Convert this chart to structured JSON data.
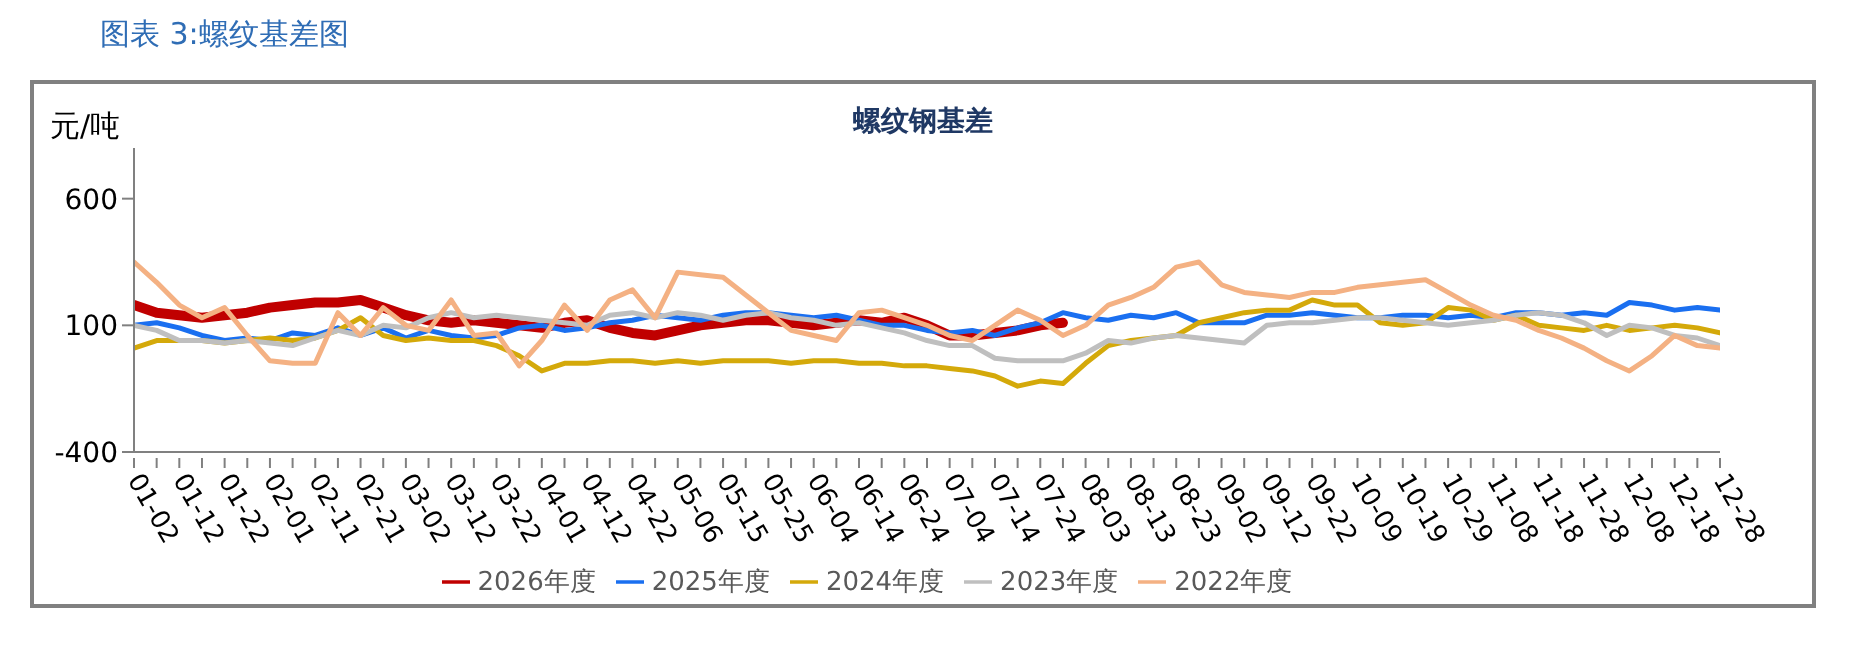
{
  "chart_data": {
    "type": "line",
    "title": "螺纹钢基差",
    "subtitle": "图表 3:螺纹基差图",
    "ylabel": "元/吨",
    "categories": [
      "01-02",
      null,
      "01-12",
      null,
      "01-22",
      null,
      "02-01",
      null,
      "02-11",
      null,
      "02-21",
      null,
      "03-02",
      null,
      "03-12",
      null,
      "03-22",
      null,
      "04-01",
      null,
      "04-12",
      null,
      "04-22",
      null,
      "05-06",
      null,
      "05-15",
      null,
      "05-25",
      null,
      "06-04",
      null,
      "06-14",
      null,
      "06-24",
      null,
      "07-04",
      null,
      "07-14",
      null,
      "07-24",
      null,
      "08-03",
      null,
      "08-13",
      null,
      "08-23",
      null,
      "09-02",
      null,
      "09-12",
      null,
      "09-22",
      null,
      "10-09",
      null,
      "10-19",
      null,
      "10-29",
      null,
      "11-08",
      null,
      "11-18",
      null,
      "11-28",
      null,
      "12-08",
      null,
      "12-18",
      null,
      "12-28"
    ],
    "ylim": [
      -400,
      800
    ],
    "yticks": [
      -400,
      100,
      600
    ],
    "grid": false,
    "legend": "bottom",
    "marker": "none",
    "series": [
      {
        "name": "2026年度",
        "color": "#c00000",
        "values": [
          180,
          150,
          140,
          130,
          140,
          150,
          170,
          180,
          190,
          190,
          200,
          170,
          140,
          120,
          110,
          120,
          110,
          100,
          90,
          110,
          120,
          90,
          70,
          60,
          80,
          100,
          110,
          120,
          120,
          110,
          100,
          110,
          120,
          110,
          130,
          100,
          60,
          60,
          70,
          80,
          100,
          110,
          null,
          null,
          null,
          null,
          null,
          null,
          null,
          null,
          null,
          null,
          null,
          null,
          null,
          null,
          null,
          null,
          null,
          null,
          null,
          null,
          null,
          null,
          null,
          null,
          null,
          null,
          null,
          null,
          null
        ]
      },
      {
        "name": "2025年度",
        "color": "#1a6ff0",
        "values": [
          100,
          110,
          90,
          60,
          40,
          50,
          40,
          70,
          60,
          90,
          60,
          90,
          50,
          80,
          60,
          50,
          60,
          90,
          100,
          80,
          90,
          110,
          120,
          140,
          130,
          120,
          140,
          150,
          150,
          140,
          130,
          140,
          120,
          100,
          100,
          80,
          70,
          80,
          60,
          90,
          110,
          150,
          130,
          120,
          140,
          130,
          150,
          110,
          110,
          110,
          140,
          140,
          150,
          140,
          130,
          130,
          140,
          140,
          130,
          140,
          130,
          150,
          150,
          140,
          150,
          140,
          190,
          180,
          160,
          170,
          160
        ]
      },
      {
        "name": "2024年度",
        "color": "#d4a90a",
        "values": [
          10,
          40,
          40,
          40,
          30,
          40,
          50,
          40,
          50,
          80,
          130,
          60,
          40,
          50,
          40,
          40,
          20,
          -20,
          -80,
          -50,
          -50,
          -40,
          -40,
          -50,
          -40,
          -50,
          -40,
          -40,
          -40,
          -50,
          -40,
          -40,
          -50,
          -50,
          -60,
          -60,
          -70,
          -80,
          -100,
          -140,
          -120,
          -130,
          -50,
          20,
          40,
          50,
          60,
          110,
          130,
          150,
          160,
          160,
          200,
          180,
          180,
          110,
          100,
          110,
          170,
          160,
          120,
          140,
          100,
          90,
          80,
          100,
          80,
          90,
          100,
          90,
          70
        ]
      },
      {
        "name": "2023年度",
        "color": "#bfbfbf",
        "values": [
          100,
          80,
          40,
          40,
          30,
          40,
          30,
          20,
          50,
          80,
          60,
          100,
          90,
          130,
          150,
          130,
          140,
          130,
          120,
          110,
          100,
          140,
          150,
          130,
          150,
          140,
          120,
          140,
          150,
          130,
          120,
          100,
          110,
          90,
          70,
          40,
          20,
          20,
          -30,
          -40,
          -40,
          -40,
          -10,
          40,
          30,
          50,
          60,
          50,
          40,
          30,
          100,
          110,
          110,
          120,
          130,
          130,
          120,
          110,
          100,
          110,
          120,
          140,
          150,
          140,
          110,
          60,
          100,
          90,
          60,
          50,
          20
        ]
      },
      {
        "name": "2022年度",
        "color": "#f4b183",
        "values": [
          350,
          270,
          180,
          130,
          170,
          60,
          -40,
          -50,
          -50,
          150,
          60,
          170,
          100,
          80,
          200,
          60,
          70,
          -60,
          40,
          180,
          80,
          200,
          240,
          130,
          310,
          300,
          290,
          220,
          150,
          80,
          60,
          40,
          150,
          160,
          130,
          100,
          60,
          40,
          100,
          160,
          120,
          60,
          100,
          180,
          210,
          250,
          330,
          350,
          260,
          230,
          220,
          210,
          230,
          230,
          250,
          260,
          270,
          280,
          230,
          180,
          140,
          120,
          80,
          50,
          10,
          -40,
          -80,
          -20,
          60,
          20,
          10
        ]
      }
    ]
  }
}
